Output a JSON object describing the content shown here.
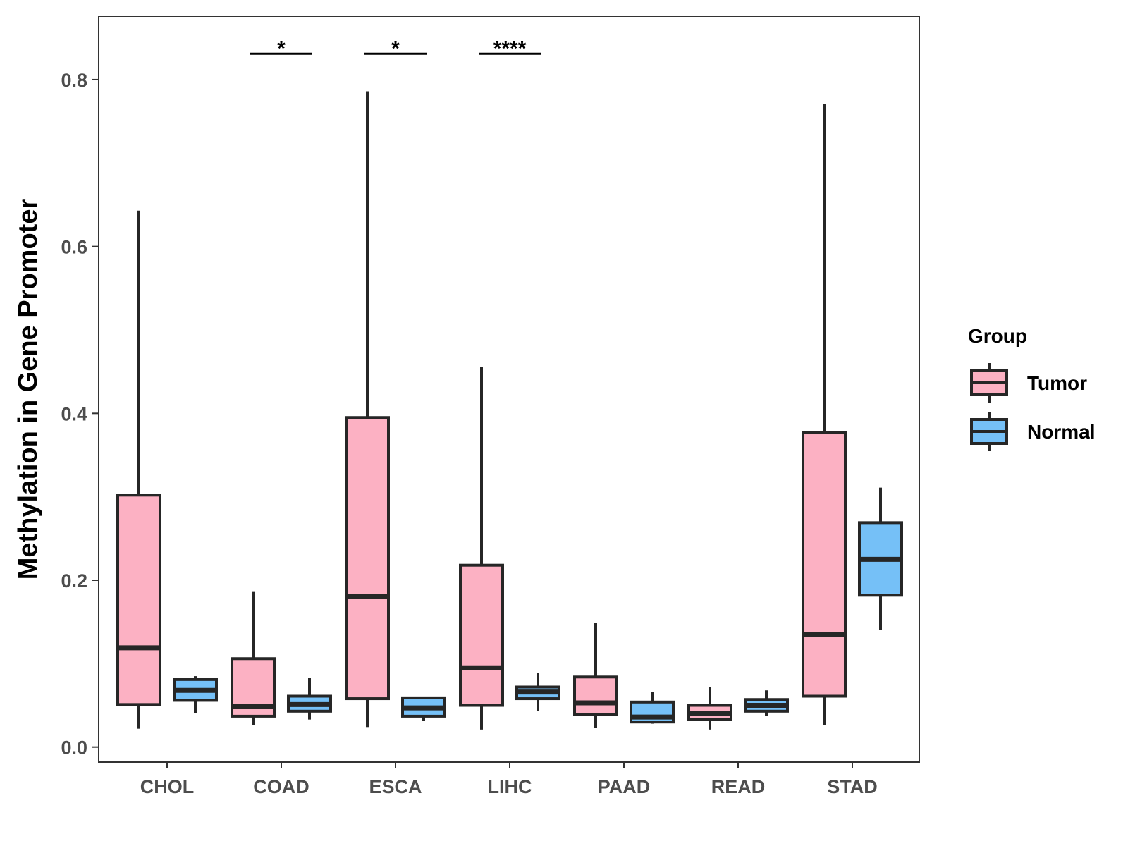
{
  "chart_data": {
    "type": "boxplot",
    "title": "",
    "xlabel": "",
    "ylabel": "Methylation in Gene Promoter",
    "ylim": [
      -0.018,
      0.876
    ],
    "yticks": [
      0.0,
      0.2,
      0.4,
      0.6,
      0.8
    ],
    "ytick_labels": [
      "0.0",
      "0.2",
      "0.4",
      "0.6",
      "0.8"
    ],
    "grid": false,
    "categories": [
      "CHOL",
      "COAD",
      "ESCA",
      "LIHC",
      "PAAD",
      "READ",
      "STAD"
    ],
    "legend": {
      "title": "Group",
      "position": "right",
      "entries": [
        {
          "name": "Tumor",
          "color": "#FCB1C3"
        },
        {
          "name": "Normal",
          "color": "#75C0F7"
        }
      ]
    },
    "series": [
      {
        "name": "Tumor",
        "color": "#FCB1C3",
        "boxes": [
          {
            "category": "CHOL",
            "min": 0.022,
            "q1": 0.051,
            "median": 0.119,
            "q3": 0.302,
            "max": 0.643
          },
          {
            "category": "COAD",
            "min": 0.026,
            "q1": 0.037,
            "median": 0.049,
            "q3": 0.106,
            "max": 0.186
          },
          {
            "category": "ESCA",
            "min": 0.024,
            "q1": 0.058,
            "median": 0.181,
            "q3": 0.395,
            "max": 0.786
          },
          {
            "category": "LIHC",
            "min": 0.021,
            "q1": 0.05,
            "median": 0.095,
            "q3": 0.218,
            "max": 0.456
          },
          {
            "category": "PAAD",
            "min": 0.023,
            "q1": 0.039,
            "median": 0.053,
            "q3": 0.084,
            "max": 0.149
          },
          {
            "category": "READ",
            "min": 0.021,
            "q1": 0.033,
            "median": 0.04,
            "q3": 0.05,
            "max": 0.072
          },
          {
            "category": "STAD",
            "min": 0.026,
            "q1": 0.061,
            "median": 0.135,
            "q3": 0.377,
            "max": 0.771
          }
        ]
      },
      {
        "name": "Normal",
        "color": "#75C0F7",
        "boxes": [
          {
            "category": "CHOL",
            "min": 0.041,
            "q1": 0.056,
            "median": 0.068,
            "q3": 0.081,
            "max": 0.085
          },
          {
            "category": "COAD",
            "min": 0.033,
            "q1": 0.043,
            "median": 0.051,
            "q3": 0.061,
            "max": 0.083
          },
          {
            "category": "ESCA",
            "min": 0.031,
            "q1": 0.037,
            "median": 0.047,
            "q3": 0.059,
            "max": 0.059
          },
          {
            "category": "LIHC",
            "min": 0.043,
            "q1": 0.058,
            "median": 0.066,
            "q3": 0.072,
            "max": 0.089
          },
          {
            "category": "PAAD",
            "min": 0.028,
            "q1": 0.03,
            "median": 0.036,
            "q3": 0.054,
            "max": 0.066
          },
          {
            "category": "READ",
            "min": 0.037,
            "q1": 0.043,
            "median": 0.05,
            "q3": 0.057,
            "max": 0.068
          },
          {
            "category": "STAD",
            "min": 0.14,
            "q1": 0.182,
            "median": 0.225,
            "q3": 0.269,
            "max": 0.311
          }
        ]
      }
    ],
    "annotations": [
      {
        "category": "COAD",
        "label": "*",
        "y": 0.831
      },
      {
        "category": "ESCA",
        "label": "*",
        "y": 0.831
      },
      {
        "category": "LIHC",
        "label": "****",
        "y": 0.831
      }
    ]
  }
}
